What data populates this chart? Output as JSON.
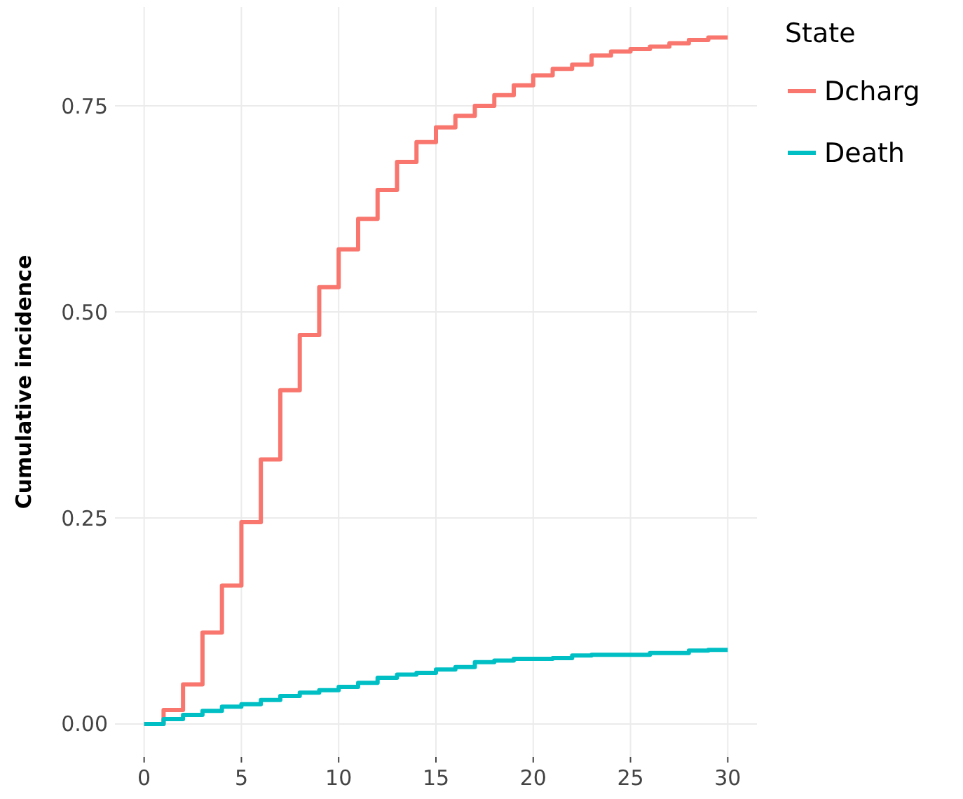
{
  "chart_data": {
    "type": "step",
    "ylabel": "Cumulative incidence",
    "legend_title": "State",
    "legend": "right",
    "grid": true,
    "x": [
      0,
      1,
      2,
      3,
      4,
      5,
      6,
      7,
      8,
      9,
      10,
      11,
      12,
      13,
      14,
      15,
      16,
      17,
      18,
      19,
      20,
      21,
      22,
      23,
      24,
      25,
      26,
      27,
      28,
      29,
      30
    ],
    "series": [
      {
        "name": "Dcharg",
        "color": "#f8766d",
        "values": [
          0,
          0.017,
          0.048,
          0.111,
          0.168,
          0.245,
          0.321,
          0.405,
          0.472,
          0.53,
          0.576,
          0.613,
          0.648,
          0.682,
          0.706,
          0.724,
          0.738,
          0.75,
          0.763,
          0.775,
          0.787,
          0.795,
          0.8,
          0.811,
          0.816,
          0.819,
          0.822,
          0.826,
          0.83,
          0.833,
          0.833
        ]
      },
      {
        "name": "Death",
        "color": "#00bfc4",
        "values": [
          0,
          0.006,
          0.011,
          0.016,
          0.021,
          0.024,
          0.029,
          0.034,
          0.038,
          0.041,
          0.045,
          0.05,
          0.056,
          0.06,
          0.062,
          0.066,
          0.069,
          0.075,
          0.077,
          0.079,
          0.079,
          0.08,
          0.083,
          0.084,
          0.084,
          0.084,
          0.086,
          0.086,
          0.089,
          0.09,
          0.09
        ]
      }
    ],
    "xlim": [
      -1.5,
      31.5
    ],
    "ylim": [
      -0.04,
      0.87
    ],
    "xticks": [
      0,
      5,
      10,
      15,
      20,
      25,
      30
    ],
    "yticks": [
      {
        "value": 0,
        "label": "0.00"
      },
      {
        "value": 0.25,
        "label": "0.25"
      },
      {
        "value": 0.5,
        "label": "0.50"
      },
      {
        "value": 0.75,
        "label": "0.75"
      }
    ]
  }
}
